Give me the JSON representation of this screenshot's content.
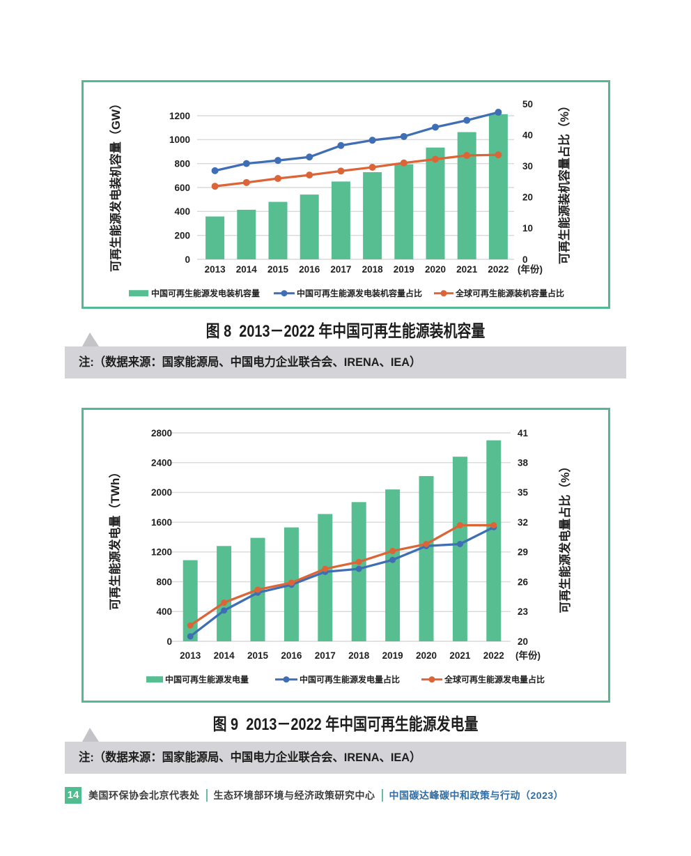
{
  "colors": {
    "bar_green": "#57be92",
    "border_green": "#53b993",
    "line_blue": "#3f6eb5",
    "line_orange": "#dc6537",
    "grid_gray": "#d9d9d9",
    "note_bg": "#d4d4d8",
    "text_dark": "#1f1f1f",
    "footer_blue": "#2e6da8",
    "footer_green": "#4fbd90"
  },
  "chart_data": [
    {
      "type": "bar",
      "caption": "图 8  2013－2022 年中国可再生能源装机容量",
      "note": "注:（数据来源：国家能源局、中国电力企业联合会、IRENA、IEA）",
      "categories": [
        "2013",
        "2014",
        "2015",
        "2016",
        "2017",
        "2018",
        "2019",
        "2020",
        "2021",
        "2022"
      ],
      "x_unit": "(年份)",
      "left_axis": {
        "label": "可再生能源发电装机容量（GW）",
        "min": 0,
        "max": 1200,
        "step": 200
      },
      "right_axis": {
        "label": "可再生能源装机容量占比（%）",
        "min": 0,
        "max": 50,
        "step": 10
      },
      "series": [
        {
          "name": "中国可再生能源发电装机容量",
          "type": "bar",
          "axis": "left",
          "color": "#57be92",
          "values": [
            358,
            414,
            480,
            541,
            650,
            728,
            794,
            934,
            1063,
            1213
          ]
        },
        {
          "name": "中国可再生能源发电装机容量占比",
          "type": "line",
          "axis": "right",
          "color": "#3f6eb5",
          "values": [
            28.5,
            30.8,
            31.8,
            32.9,
            36.6,
            38.3,
            39.5,
            42.5,
            44.7,
            47.3
          ]
        },
        {
          "name": "全球可再生能源装机容量占比",
          "type": "line",
          "axis": "right",
          "color": "#dc6537",
          "values": [
            23.5,
            24.7,
            26.0,
            27.1,
            28.4,
            29.6,
            31.0,
            32.2,
            33.4,
            33.6
          ]
        }
      ]
    },
    {
      "type": "bar",
      "caption": "图 9  2013－2022 年中国可再生能源发电量",
      "note": "注:（数据来源：国家能源局、中国电力企业联合会、IRENA、IEA）",
      "categories": [
        "2013",
        "2014",
        "2015",
        "2016",
        "2017",
        "2018",
        "2019",
        "2020",
        "2021",
        "2022"
      ],
      "x_unit": "(年份)",
      "left_axis": {
        "label": "可再生能源发电量（TWh）",
        "min": 0,
        "max": 2800,
        "step": 400
      },
      "right_axis": {
        "label": "可再生能源发电量占比（%）",
        "min": 20,
        "max": 41,
        "step": 3
      },
      "series": [
        {
          "name": "中国可再生能源发电量",
          "type": "bar",
          "axis": "left",
          "color": "#57be92",
          "values": [
            1090,
            1280,
            1390,
            1530,
            1710,
            1870,
            2040,
            2220,
            2480,
            2700
          ]
        },
        {
          "name": "中国可再生能源发电量占比",
          "type": "line",
          "axis": "right",
          "color": "#3f6eb5",
          "values": [
            20.5,
            23.1,
            24.9,
            25.7,
            27.0,
            27.3,
            28.2,
            29.6,
            29.8,
            31.5
          ]
        },
        {
          "name": "全球可再生能源发电量占比",
          "type": "line",
          "axis": "right",
          "color": "#dc6537",
          "values": [
            21.6,
            23.9,
            25.2,
            25.9,
            27.3,
            28.0,
            29.1,
            29.8,
            31.7,
            31.7
          ]
        }
      ]
    }
  ],
  "footer": {
    "page_number": "14",
    "org1": "美国环保协会北京代表处",
    "org2": "生态环境部环境与经济政策研究中心",
    "edition": "中国碳达峰碳中和政策与行动（2023）"
  }
}
